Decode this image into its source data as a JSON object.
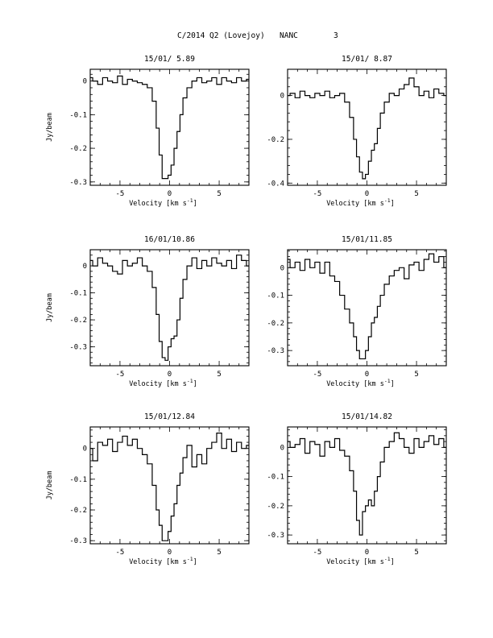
{
  "figure": {
    "supertitle_left": "C/2014 Q2 (Lovejoy)",
    "supertitle_mid": "NANC",
    "supertitle_right": "3"
  },
  "chart_data": [
    {
      "type": "line",
      "title": "15/01/ 5.89",
      "xlabel": "Velocity [km s",
      "xlabel_sup": "-1",
      "xlabel_end": "]",
      "ylabel": "Jy/beam",
      "xlim": [
        -8,
        8
      ],
      "ylim": [
        -0.31,
        0.035
      ],
      "xticks": [
        -5,
        0,
        5
      ],
      "yticks": [
        0,
        -0.1,
        -0.2,
        -0.3
      ],
      "ytick_labels": [
        "0",
        "-0.1",
        "-0.2",
        "-0.3"
      ],
      "x": [
        -8,
        -7.5,
        -7,
        -6.5,
        -6,
        -5.5,
        -5,
        -4.5,
        -4,
        -3.5,
        -3,
        -2.5,
        -2,
        -1.5,
        -1.2,
        -0.9,
        -0.6,
        -0.3,
        0,
        0.3,
        0.6,
        0.9,
        1.2,
        1.5,
        2,
        2.5,
        3,
        3.5,
        4,
        4.5,
        5,
        5.5,
        6,
        6.5,
        7,
        7.5,
        8
      ],
      "y": [
        0.01,
        0.0,
        -0.01,
        0.01,
        0.0,
        -0.005,
        0.015,
        -0.01,
        0.005,
        0.0,
        -0.005,
        -0.01,
        -0.02,
        -0.06,
        -0.14,
        -0.22,
        -0.29,
        -0.29,
        -0.28,
        -0.25,
        -0.2,
        -0.15,
        -0.1,
        -0.05,
        -0.02,
        0.0,
        0.01,
        -0.005,
        0.0,
        0.01,
        -0.01,
        0.01,
        0.0,
        -0.005,
        0.01,
        0.0,
        0.005
      ]
    },
    {
      "type": "line",
      "title": "15/01/ 8.87",
      "xlabel": "Velocity [km s",
      "xlabel_sup": "-1",
      "xlabel_end": "]",
      "ylabel": "",
      "xlim": [
        -8,
        8
      ],
      "ylim": [
        -0.41,
        0.12
      ],
      "xticks": [
        -5,
        0,
        5
      ],
      "yticks": [
        0,
        -0.2,
        -0.4
      ],
      "ytick_labels": [
        "0",
        "-0.2",
        "-0.4"
      ],
      "x": [
        -8,
        -7.5,
        -7,
        -6.5,
        -6,
        -5.5,
        -5,
        -4.5,
        -4,
        -3.5,
        -3,
        -2.5,
        -2,
        -1.5,
        -1.2,
        -0.9,
        -0.6,
        -0.3,
        0,
        0.3,
        0.6,
        0.9,
        1.2,
        1.5,
        2,
        2.5,
        3,
        3.5,
        4,
        4.5,
        5,
        5.5,
        6,
        6.5,
        7,
        7.5,
        8
      ],
      "y": [
        0.0,
        0.01,
        -0.01,
        0.02,
        0.0,
        -0.01,
        0.01,
        0.0,
        0.02,
        -0.01,
        0.0,
        0.01,
        -0.03,
        -0.1,
        -0.2,
        -0.28,
        -0.35,
        -0.38,
        -0.36,
        -0.3,
        -0.25,
        -0.22,
        -0.15,
        -0.08,
        -0.03,
        0.01,
        0.0,
        0.03,
        0.05,
        0.08,
        0.04,
        0.0,
        0.02,
        -0.01,
        0.03,
        0.01,
        0.0
      ]
    },
    {
      "type": "line",
      "title": "16/01/10.86",
      "xlabel": "Velocity [km s",
      "xlabel_sup": "-1",
      "xlabel_end": "]",
      "ylabel": "Jy/beam",
      "xlim": [
        -8,
        8
      ],
      "ylim": [
        -0.37,
        0.06
      ],
      "xticks": [
        -5,
        0,
        5
      ],
      "yticks": [
        0,
        -0.1,
        -0.2,
        -0.3
      ],
      "ytick_labels": [
        "0",
        "-0.1",
        "-0.2",
        "-0.3"
      ],
      "x": [
        -8,
        -7.5,
        -7,
        -6.5,
        -6,
        -5.5,
        -5,
        -4.5,
        -4,
        -3.5,
        -3,
        -2.5,
        -2,
        -1.5,
        -1.2,
        -0.9,
        -0.6,
        -0.3,
        0,
        0.3,
        0.6,
        0.9,
        1.2,
        1.5,
        2,
        2.5,
        3,
        3.5,
        4,
        4.5,
        5,
        5.5,
        6,
        6.5,
        7,
        7.5,
        8
      ],
      "y": [
        0.02,
        0.0,
        0.03,
        0.01,
        0.0,
        -0.02,
        -0.03,
        0.02,
        0.0,
        0.01,
        0.03,
        0.0,
        -0.02,
        -0.08,
        -0.18,
        -0.28,
        -0.34,
        -0.35,
        -0.3,
        -0.27,
        -0.26,
        -0.2,
        -0.12,
        -0.05,
        0.0,
        0.03,
        -0.01,
        0.02,
        0.0,
        0.03,
        0.01,
        0.0,
        0.02,
        -0.01,
        0.04,
        0.02,
        0.0
      ]
    },
    {
      "type": "line",
      "title": "15/01/11.85",
      "xlabel": "Velocity [km s",
      "xlabel_sup": "-1",
      "xlabel_end": "]",
      "ylabel": "",
      "xlim": [
        -8,
        8
      ],
      "ylim": [
        -0.355,
        0.065
      ],
      "xticks": [
        -5,
        0,
        5
      ],
      "yticks": [
        0,
        -0.1,
        -0.2,
        -0.3
      ],
      "ytick_labels": [
        "0",
        "-0.1",
        "-0.2",
        "-0.3"
      ],
      "x": [
        -8,
        -7.5,
        -7,
        -6.5,
        -6,
        -5.5,
        -5,
        -4.5,
        -4,
        -3.5,
        -3,
        -2.5,
        -2,
        -1.5,
        -1.2,
        -0.9,
        -0.6,
        -0.3,
        0,
        0.3,
        0.6,
        0.9,
        1.2,
        1.5,
        2,
        2.5,
        3,
        3.5,
        4,
        4.5,
        5,
        5.5,
        6,
        6.5,
        7,
        7.5,
        8
      ],
      "y": [
        0.03,
        0.0,
        0.02,
        -0.01,
        0.03,
        0.0,
        0.02,
        -0.02,
        0.02,
        -0.03,
        -0.05,
        -0.1,
        -0.15,
        -0.2,
        -0.25,
        -0.3,
        -0.33,
        -0.33,
        -0.3,
        -0.25,
        -0.2,
        -0.18,
        -0.14,
        -0.1,
        -0.06,
        -0.03,
        -0.01,
        0.0,
        -0.04,
        0.01,
        0.02,
        -0.01,
        0.03,
        0.05,
        0.02,
        0.04,
        0.0
      ]
    },
    {
      "type": "line",
      "title": "15/01/12.84",
      "xlabel": "Velocity [km s",
      "xlabel_sup": "-1",
      "xlabel_end": "]",
      "ylabel": "Jy/beam",
      "xlim": [
        -8,
        8
      ],
      "ylim": [
        -0.31,
        0.07
      ],
      "xticks": [
        -5,
        0,
        5
      ],
      "yticks": [
        0,
        -0.1,
        -0.2,
        -0.3
      ],
      "ytick_labels": [
        "0",
        "-0.1",
        "-0.2",
        "-0.3"
      ],
      "x": [
        -8,
        -7.5,
        -7,
        -6.5,
        -6,
        -5.5,
        -5,
        -4.5,
        -4,
        -3.5,
        -3,
        -2.5,
        -2,
        -1.5,
        -1.2,
        -0.9,
        -0.6,
        -0.3,
        0,
        0.3,
        0.6,
        0.9,
        1.2,
        1.5,
        2,
        2.5,
        3,
        3.5,
        4,
        4.5,
        5,
        5.5,
        6,
        6.5,
        7,
        7.5,
        8
      ],
      "y": [
        0.0,
        -0.04,
        0.02,
        0.01,
        0.03,
        -0.01,
        0.02,
        0.04,
        0.01,
        0.03,
        0.0,
        -0.02,
        -0.05,
        -0.12,
        -0.2,
        -0.25,
        -0.3,
        -0.3,
        -0.27,
        -0.22,
        -0.18,
        -0.12,
        -0.08,
        -0.03,
        0.01,
        -0.06,
        -0.02,
        -0.05,
        0.0,
        0.02,
        0.05,
        0.0,
        0.03,
        -0.01,
        0.02,
        0.0,
        0.01
      ]
    },
    {
      "type": "line",
      "title": "15/01/14.82",
      "xlabel": "Velocity [km s",
      "xlabel_sup": "-1",
      "xlabel_end": "]",
      "ylabel": "",
      "xlim": [
        -8,
        8
      ],
      "ylim": [
        -0.33,
        0.07
      ],
      "xticks": [
        -5,
        0,
        5
      ],
      "yticks": [
        0,
        -0.1,
        -0.2,
        -0.3
      ],
      "ytick_labels": [
        "0",
        "-0.1",
        "-0.2",
        "-0.3"
      ],
      "x": [
        -8,
        -7.5,
        -7,
        -6.5,
        -6,
        -5.5,
        -5,
        -4.5,
        -4,
        -3.5,
        -3,
        -2.5,
        -2,
        -1.5,
        -1.2,
        -0.9,
        -0.6,
        -0.3,
        0,
        0.3,
        0.6,
        0.9,
        1.2,
        1.5,
        2,
        2.5,
        3,
        3.5,
        4,
        4.5,
        5,
        5.5,
        6,
        6.5,
        7,
        7.5,
        8
      ],
      "y": [
        0.02,
        0.0,
        0.01,
        0.03,
        -0.02,
        0.02,
        0.01,
        -0.03,
        0.02,
        0.0,
        0.03,
        -0.01,
        -0.03,
        -0.08,
        -0.15,
        -0.25,
        -0.3,
        -0.22,
        -0.2,
        -0.18,
        -0.2,
        -0.15,
        -0.1,
        -0.05,
        0.0,
        0.02,
        0.05,
        0.03,
        0.0,
        -0.02,
        0.03,
        0.0,
        0.02,
        0.04,
        0.01,
        0.03,
        0.0
      ]
    }
  ]
}
